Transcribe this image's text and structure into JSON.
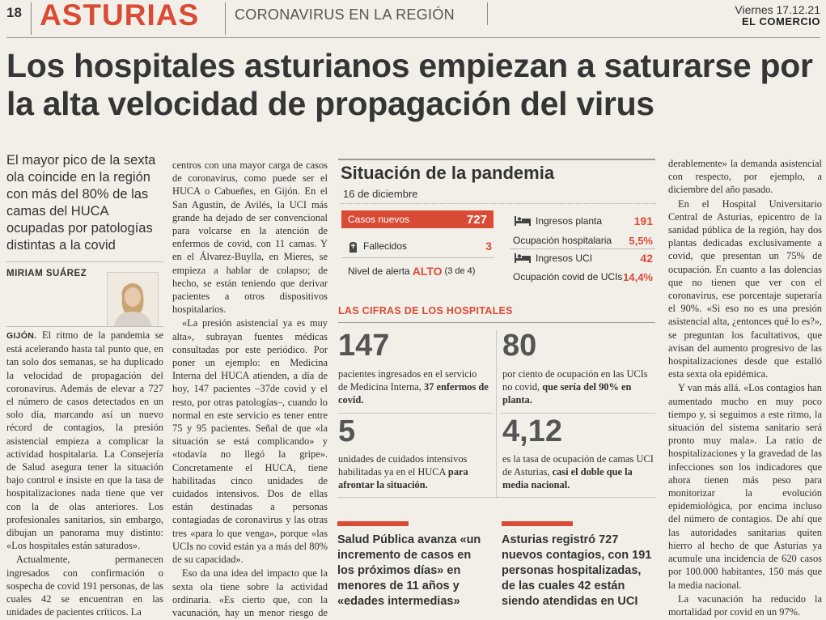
{
  "header": {
    "page_number": "18",
    "section": "ASTURIAS",
    "subsection": "CORONAVIRUS EN LA REGIÓN",
    "date": "Viernes 17.12.21",
    "paper": "EL COMERCIO"
  },
  "headline": "Los hospitales asturianos empiezan a saturarse por la alta velocidad de propagación del virus",
  "subhead": "El mayor pico de la sexta ola coincide en la región con más del 80% de las camas del HUCA ocupadas por patologías distintas a la covid",
  "author": "MIRIAM SUÁREZ",
  "col1": {
    "lead_word": "GIJÓN.",
    "p1_rest": "El ritmo de la pandemia se está acelerando hasta tal punto que, en tan solo dos semanas, se ha duplicado la velocidad de propagación del coronavirus. Además de elevar a 727 el número de casos detectados en un solo día, marcando así un nuevo récord de contagios, la presión asistencial empieza a complicar la actividad hospitalaria. La Consejería de Salud asegura tener la situación bajo control e insiste en que la tasa de hospitalizaciones nada tiene que ver con la de olas anteriores. Los profesionales sanitarios, sin embargo, dibujan un panorama muy distinto: «Los hospitales están saturados».",
    "p2": "Actualmente, permanecen ingresados con confirmación o sospecha de covid 191 personas, de las cuales 42 se encuentran en las unidades de pacientes críticos. La"
  },
  "col2": {
    "p1": "centros con una mayor carga de casos de coronavirus, como puede ser el HUCA o Cabueñes, en Gijón. En el San Agustín, de Avilés, la UCI más grande ha dejado de ser convencional para volcarse en la atención de enfermos de covid, con 11 camas. Y en el Álvarez-Buylla, en Mieres, se empieza a hablar de colapso; de hecho, se están teniendo que derivar pacientes a otros dispositivos hospitalarios.",
    "p2": "«La presión asistencial ya es muy alta», subrayan fuentes médicas consultadas por este periódico. Por poner un ejemplo: en Medicina Interna del HUCA atienden, a día de hoy, 147 pacientes –37de covid y el resto, por otras patologías–, cuando lo normal en este servicio es tener entre 75 y 95 pacientes. Señal de que «la situación se está complicando» y «todavía no llegó la gripe». Concretamente el HUCA, tiene habilitadas cinco unidades de cuidados intensivos. Dos de ellas están destinadas a personas contagiadas de coronavirus y las otras tres «para lo que venga», porque «las UCIs no covid están ya a más del 80% de su capacidad».",
    "p3": "Eso da una idea del impacto que la sexta ola tiene sobre la actividad ordinaria. «Es cierto que, con la vacunación, hay un menor riesgo de que los enfermos de covid"
  },
  "col3": {
    "p1": "derablemente» la demanda asistencial con respecto, por ejemplo, a diciembre del año pasado.",
    "p2": "En el Hospital Universitario Central de Asturias, epicentro de la sanidad pública de la región, hay dos plantas dedicadas exclusivamente a covid, que presentan un 75% de ocupación. En cuanto a las dolencias que no tienen que ver con el coronavirus, ese porcentaje superaría el 90%. «Si eso no es una presión asistencial alta, ¿entonces qué lo es?», se preguntan los facultativos, que avisan del aumento progresivo de las hospitalizaciones desde que estalló esta sexta ola epidémica.",
    "p3": "Y van más allá. «Los contagios han aumentado mucho en muy poco tiempo y, si seguimos a este ritmo, la situación del sistema sanitario será pronto muy mala». La ratio de hospitalizaciones y la gravedad de las infecciones son los indicadores que ahora tienen más peso para monitorizar la evolución epidemiológica, por encima incluso del número de contagios. De ahí que las autoridades sanitarias quiten hierro al hecho de que Asturias ya acumule una incidencia de 620 casos por 100.000 habitantes, 150 más que la media nacional.",
    "p4": "La vacunación ha reducido la mortalidad por covid en un 97%."
  },
  "infographic": {
    "title": "Situación de la pandemia",
    "date": "16 de diciembre",
    "casos_label": "Casos nuevos",
    "casos_value": "727",
    "fallecidos_label": "Fallecidos",
    "fallecidos_value": "3",
    "alerta_label": "Nivel de alerta",
    "alerta_value": "ALTO",
    "alerta_detail": "(3 de 4)",
    "ingresos_planta_label": "Ingresos planta",
    "ingresos_planta_value": "191",
    "ocup_hosp_label": "Ocupación hospitalaria",
    "ocup_hosp_value": "5,5%",
    "ingresos_uci_label": "Ingresos UCI",
    "ingresos_uci_value": "42",
    "ocup_covid_label": "Ocupación covid de UCIs",
    "ocup_covid_value": "14,4%",
    "cifras_title": "LAS CIFRAS DE LOS HOSPITALES",
    "figures": [
      {
        "number": "147",
        "text_pre": "pacientes ingresados en el servicio de Medicina Interna, ",
        "text_bold": "37 enfermos de covid."
      },
      {
        "number": "80",
        "text_pre": "por ciento de ocupación en las UCIs no covid, ",
        "text_bold": "que sería del 90% en planta."
      },
      {
        "number": "5",
        "text_pre": "unidades de cuidados intensivos habilitadas ya en el HUCA ",
        "text_bold": "para afrontar la situación."
      },
      {
        "number": "4,12",
        "text_pre": "es la tasa de ocupación de camas UCI de Asturias, ",
        "text_bold": "casi el doble que la media nacional."
      }
    ],
    "colors": {
      "accent": "#d94b35"
    }
  },
  "pull_quotes": [
    "Salud Pública avanza «un incremento de casos en los próximos días» en menores de 11 años y «edades intermedias»",
    "Asturias registró 727 nuevos contagios, con 191 personas hospitalizadas, de las cuales 42 están siendo atendidas en UCI"
  ]
}
